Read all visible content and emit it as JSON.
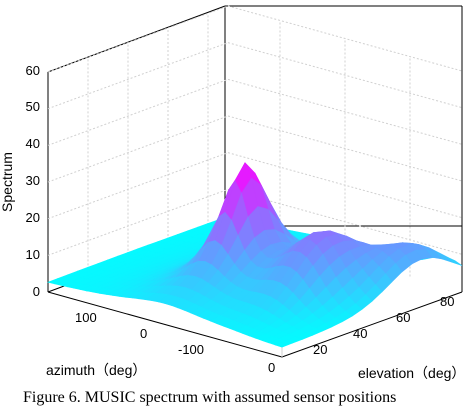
{
  "caption": "Figure 6.    MUSIC spectrum with assumed sensor positions",
  "chart_data": {
    "type": "surface3d",
    "zlabel": "Spectrum",
    "xlabel": "azimuth（deg）",
    "ylabel": "elevation（deg）",
    "z_ticks": [
      "0",
      "10",
      "20",
      "30",
      "40",
      "50",
      "60"
    ],
    "azimuth_ticks": [
      "100",
      "0",
      "-100"
    ],
    "elevation_ticks": [
      "0",
      "20",
      "40",
      "60",
      "80"
    ],
    "zlim": [
      0,
      60
    ],
    "azimuth_range": [
      -180,
      180
    ],
    "elevation_range": [
      0,
      90
    ],
    "grid": true,
    "peaks": [
      {
        "azimuth": 0,
        "elevation": 40,
        "value": 36
      },
      {
        "azimuth": -100,
        "elevation": 45,
        "value": 18
      },
      {
        "azimuth": -160,
        "elevation": 70,
        "value": 14
      }
    ],
    "baseline": 2,
    "colormap": [
      "#00ffff",
      "#ff00ff"
    ]
  }
}
